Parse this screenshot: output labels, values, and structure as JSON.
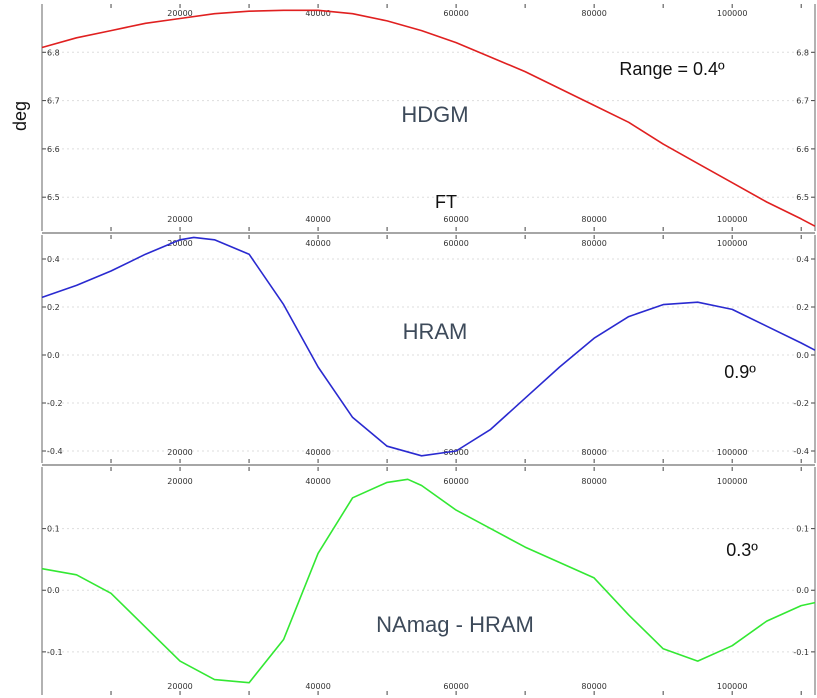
{
  "page": {
    "ylabel": "deg",
    "ft_label": "FT"
  },
  "chart_data": [
    {
      "type": "line",
      "title": "",
      "xlabel": "",
      "ylabel": "deg",
      "xlim": [
        0,
        112000
      ],
      "ylim": [
        6.43,
        6.9
      ],
      "x_ticks": [
        20000,
        40000,
        60000,
        80000,
        100000
      ],
      "x_tick_labels": [
        "20000",
        "40000",
        "60000",
        "80000",
        "100000"
      ],
      "y_ticks": [
        6.5,
        6.6,
        6.7,
        6.8
      ],
      "y_tick_labels": [
        "6.5",
        "6.6",
        "6.7",
        "6.8"
      ],
      "grid": true,
      "color": "#e02020",
      "annotations": [
        "HDGM",
        "Range = 0.4º"
      ],
      "series": [
        {
          "x": [
            0,
            5000,
            10000,
            15000,
            20000,
            25000,
            30000,
            35000,
            40000,
            45000,
            50000,
            55000,
            60000,
            65000,
            70000,
            75000,
            80000,
            85000,
            90000,
            95000,
            100000,
            105000,
            110000,
            112000
          ],
          "values": [
            6.81,
            6.83,
            6.845,
            6.86,
            6.87,
            6.88,
            6.885,
            6.887,
            6.887,
            6.88,
            6.865,
            6.845,
            6.82,
            6.79,
            6.76,
            6.725,
            6.69,
            6.655,
            6.61,
            6.57,
            6.53,
            6.49,
            6.455,
            6.44
          ]
        }
      ]
    },
    {
      "type": "line",
      "title": "",
      "xlabel": "",
      "ylabel": "",
      "xlim": [
        0,
        112000
      ],
      "ylim": [
        -0.45,
        0.5
      ],
      "x_ticks": [
        20000,
        40000,
        60000,
        80000,
        100000
      ],
      "x_tick_labels": [
        "20000",
        "40000",
        "60000",
        "80000",
        "100000"
      ],
      "y_ticks": [
        -0.4,
        -0.2,
        0.0,
        0.2,
        0.4
      ],
      "y_tick_labels": [
        "-0.4",
        "-0.2",
        "0.0",
        "0.2",
        "0.4"
      ],
      "grid": true,
      "color": "#2a2ad0",
      "annotations": [
        "HRAM",
        "0.9º"
      ],
      "series": [
        {
          "x": [
            0,
            5000,
            10000,
            15000,
            20000,
            22000,
            25000,
            30000,
            35000,
            40000,
            45000,
            50000,
            55000,
            60000,
            65000,
            70000,
            75000,
            80000,
            85000,
            90000,
            95000,
            100000,
            105000,
            110000,
            112000
          ],
          "values": [
            0.24,
            0.29,
            0.35,
            0.42,
            0.48,
            0.49,
            0.48,
            0.42,
            0.21,
            -0.05,
            -0.26,
            -0.38,
            -0.42,
            -0.4,
            -0.31,
            -0.18,
            -0.05,
            0.07,
            0.16,
            0.21,
            0.22,
            0.19,
            0.12,
            0.05,
            0.02
          ]
        }
      ]
    },
    {
      "type": "line",
      "title": "",
      "xlabel": "",
      "ylabel": "",
      "xlim": [
        0,
        112000
      ],
      "ylim": [
        -0.17,
        0.2
      ],
      "x_ticks": [
        20000,
        40000,
        60000,
        80000,
        100000
      ],
      "x_tick_labels": [
        "20000",
        "40000",
        "60000",
        "80000",
        "100000"
      ],
      "y_ticks": [
        -0.1,
        0.0,
        0.1
      ],
      "y_tick_labels": [
        "-0.1",
        "0.0",
        "0.1"
      ],
      "grid": true,
      "color": "#33e833",
      "annotations": [
        "NAmag - HRAM",
        "0.3º"
      ],
      "series": [
        {
          "x": [
            0,
            5000,
            10000,
            15000,
            20000,
            25000,
            30000,
            35000,
            40000,
            45000,
            50000,
            53000,
            55000,
            60000,
            65000,
            70000,
            75000,
            80000,
            85000,
            90000,
            95000,
            100000,
            105000,
            110000,
            112000
          ],
          "values": [
            0.035,
            0.025,
            -0.005,
            -0.06,
            -0.115,
            -0.145,
            -0.15,
            -0.08,
            0.06,
            0.15,
            0.175,
            0.18,
            0.17,
            0.13,
            0.1,
            0.07,
            0.045,
            0.02,
            -0.04,
            -0.095,
            -0.115,
            -0.09,
            -0.05,
            -0.025,
            -0.02
          ]
        }
      ]
    }
  ]
}
